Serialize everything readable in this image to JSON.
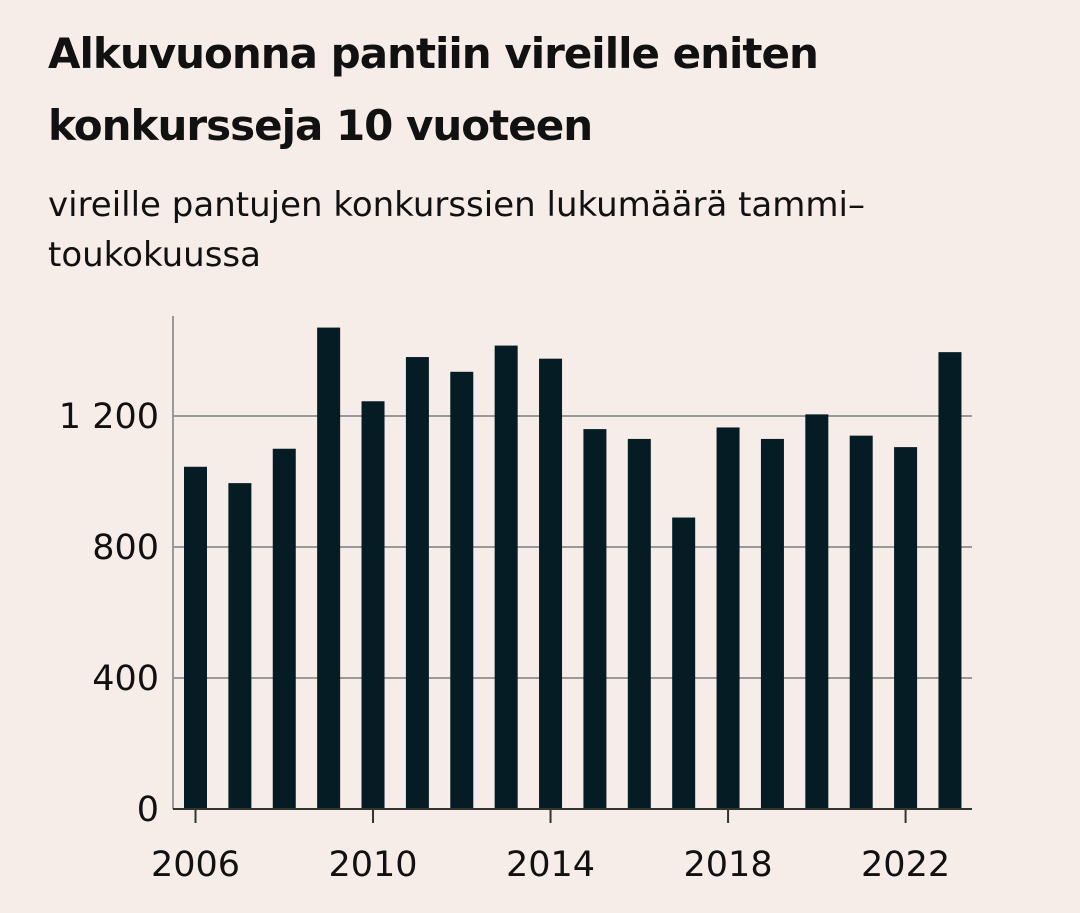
{
  "colors": {
    "background": "#f6ede8",
    "bar": "#051c24",
    "grid": "#999999",
    "text": "#111111"
  },
  "header": {
    "title": "Alkuvuonna pantiin vireille eniten konkursseja 10 vuoteen",
    "subtitle": "vireille pantujen konkurssien lukumäärä tammi–toukokuussa"
  },
  "chart_data": {
    "type": "bar",
    "title": "Alkuvuonna pantiin vireille eniten konkursseja 10 vuoteen",
    "subtitle": "vireille pantujen konkurssien lukumäärä tammi–toukokuussa",
    "xlabel": "",
    "ylabel": "",
    "categories": [
      "2006",
      "2007",
      "2008",
      "2009",
      "2010",
      "2011",
      "2012",
      "2013",
      "2014",
      "2015",
      "2016",
      "2017",
      "2018",
      "2019",
      "2020",
      "2021",
      "2022",
      "2023"
    ],
    "values": [
      1045,
      995,
      1100,
      1470,
      1245,
      1380,
      1335,
      1415,
      1375,
      1160,
      1130,
      890,
      1165,
      1130,
      1205,
      1140,
      1105,
      1395
    ],
    "ylim": [
      0,
      1500
    ],
    "y_ticks": [
      0,
      400,
      800,
      1200
    ],
    "y_tick_labels": [
      "0",
      "400",
      "800",
      "1 200"
    ],
    "x_tick_labels": [
      "2006",
      "2010",
      "2014",
      "2018",
      "2022"
    ],
    "grid": "horizontal",
    "legend": "none"
  }
}
